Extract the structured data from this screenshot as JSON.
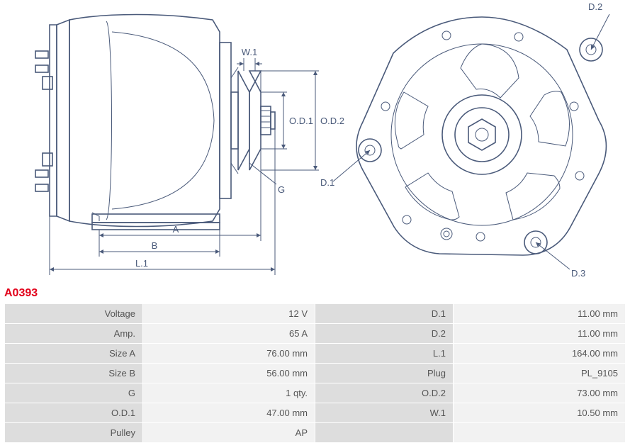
{
  "part_number": "A0393",
  "part_number_color": "#e2001a",
  "part_number_fontsize": 16,
  "diagram": {
    "stroke_color": "#4a5a7a",
    "label_color": "#4a5a7a",
    "label_fontsize": 13,
    "side_view": {
      "labels": {
        "A": "A",
        "B": "B",
        "L1": "L.1",
        "G": "G",
        "W1": "W.1",
        "OD1": "O.D.1",
        "OD2": "O.D.2"
      }
    },
    "front_view": {
      "labels": {
        "D1": "D.1",
        "D2": "D.2",
        "D3": "D.3"
      }
    }
  },
  "table": {
    "label_bg": "#dddddd",
    "value_bg": "#f2f2f2",
    "text_color": "#555555",
    "fontsize": 13,
    "rows": [
      {
        "l1": "Voltage",
        "v1": "12 V",
        "l2": "D.1",
        "v2": "11.00 mm"
      },
      {
        "l1": "Amp.",
        "v1": "65 A",
        "l2": "D.2",
        "v2": "11.00 mm"
      },
      {
        "l1": "Size A",
        "v1": "76.00 mm",
        "l2": "L.1",
        "v2": "164.00 mm"
      },
      {
        "l1": "Size B",
        "v1": "56.00 mm",
        "l2": "Plug",
        "v2": "PL_9105"
      },
      {
        "l1": "G",
        "v1": "1 qty.",
        "l2": "O.D.2",
        "v2": "73.00 mm"
      },
      {
        "l1": "O.D.1",
        "v1": "47.00 mm",
        "l2": "W.1",
        "v2": "10.50 mm"
      },
      {
        "l1": "Pulley",
        "v1": "AP",
        "l2": "",
        "v2": ""
      }
    ]
  }
}
